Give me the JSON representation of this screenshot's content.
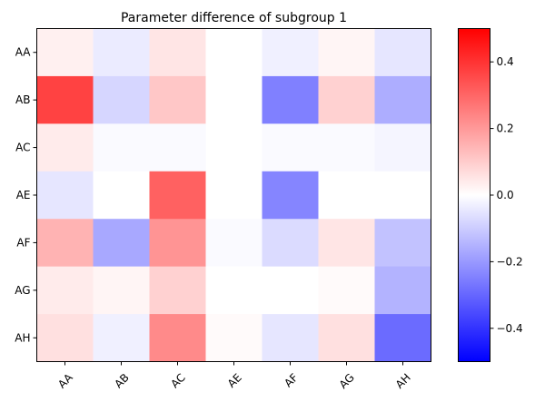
{
  "chart_data": {
    "type": "heatmap",
    "title": "Parameter difference of subgroup 1",
    "xlabel": "",
    "ylabel": "",
    "x_categories": [
      "AA",
      "AB",
      "AC",
      "AE",
      "AF",
      "AG",
      "AH"
    ],
    "y_categories": [
      "AA",
      "AB",
      "AC",
      "AE",
      "AF",
      "AG",
      "AH"
    ],
    "values": [
      [
        0.03,
        -0.04,
        0.05,
        0.0,
        -0.03,
        0.02,
        -0.05
      ],
      [
        0.37,
        -0.08,
        0.11,
        0.0,
        -0.25,
        0.09,
        -0.16
      ],
      [
        0.04,
        -0.01,
        -0.01,
        0.0,
        -0.01,
        -0.01,
        -0.02
      ],
      [
        -0.05,
        0.0,
        0.31,
        0.0,
        -0.24,
        0.0,
        0.0
      ],
      [
        0.15,
        -0.17,
        0.21,
        -0.01,
        -0.07,
        0.05,
        -0.12
      ],
      [
        0.04,
        0.02,
        0.09,
        0.0,
        0.0,
        0.01,
        -0.15
      ],
      [
        0.06,
        -0.03,
        0.23,
        0.01,
        -0.05,
        0.06,
        -0.29
      ]
    ],
    "colormap": "bwr",
    "vmin": -0.5,
    "vmax": 0.5,
    "colorbar": {
      "ticks": [
        0.4,
        0.2,
        0.0,
        -0.2,
        -0.4
      ],
      "tick_labels": [
        "0.4",
        "0.2",
        "0.0",
        "−0.2",
        "−0.4"
      ]
    },
    "colors": {
      "min": "#0000ff",
      "mid": "#ffffff",
      "max": "#ff0000"
    },
    "grid": false
  }
}
